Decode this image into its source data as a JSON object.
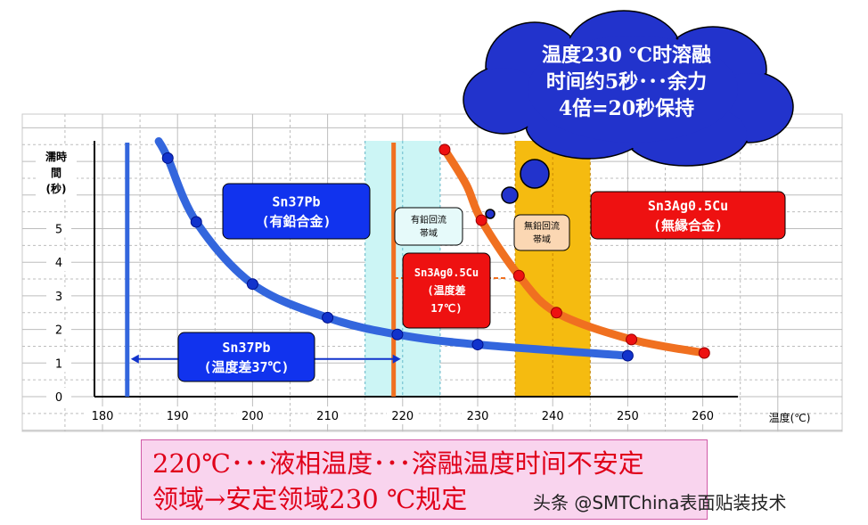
{
  "chart_data": {
    "type": "line",
    "xlabel": "温度(℃)",
    "ylabel_lines": [
      "濡時",
      "間",
      "(秒)"
    ],
    "x_ticks": [
      180,
      190,
      200,
      210,
      220,
      230,
      240,
      250,
      260
    ],
    "y_ticks": [
      0,
      1,
      2,
      3,
      4,
      5
    ],
    "xlim": [
      176,
      265
    ],
    "ylim": [
      0,
      7.2
    ],
    "grid": true,
    "series": [
      {
        "color": "#3366dd",
        "x": [
          187.5,
          188.7,
          192.5,
          200,
          210,
          219.3,
          230,
          250
        ],
        "y": [
          7.6,
          7.1,
          5.2,
          3.35,
          2.35,
          1.85,
          1.55,
          1.22
        ]
      },
      {
        "color": "#f07020",
        "x": [
          225.6,
          228.5,
          230.5,
          235.5,
          240.5,
          250.5,
          260.2
        ],
        "y": [
          7.35,
          6.3,
          5.25,
          3.6,
          2.5,
          1.7,
          1.3
        ]
      }
    ],
    "blue_markers": [
      {
        "x": 188.7,
        "y": 7.1
      },
      {
        "x": 192.5,
        "y": 5.2
      },
      {
        "x": 200,
        "y": 3.35
      },
      {
        "x": 210,
        "y": 2.35
      },
      {
        "x": 219.3,
        "y": 1.85
      },
      {
        "x": 230,
        "y": 1.55
      },
      {
        "x": 250,
        "y": 1.22
      }
    ],
    "orange_markers": [
      {
        "x": 225.6,
        "y": 7.35
      },
      {
        "x": 230.5,
        "y": 5.25
      },
      {
        "x": 235.5,
        "y": 3.6
      },
      {
        "x": 240.5,
        "y": 2.5
      },
      {
        "x": 250.5,
        "y": 1.7
      },
      {
        "x": 260.2,
        "y": 1.3
      }
    ],
    "vertical_lines": [
      {
        "x": 183.3,
        "color": "#3366dd"
      },
      {
        "x": 218.8,
        "color": "#f07020"
      }
    ],
    "bands": [
      {
        "x0": 215,
        "x1": 225,
        "color": "#ccf5f5",
        "label": [
          "有鉛回流",
          "帯域"
        ]
      },
      {
        "x0": 235,
        "x1": 245,
        "color": "#f5bb10",
        "label": [
          "無鉛回流",
          "帯域"
        ]
      }
    ],
    "arrow_span": {
      "x0": 183.3,
      "x1": 218.8,
      "y": 1.12
    },
    "labels": {
      "sn37pb": [
        "Sn37Pb",
        "(有鉛合金)"
      ],
      "sn37pb_diff": [
        "Sn37Pb",
        "(温度差37℃)"
      ],
      "sac": [
        "Sn3Ag0.5Cu",
        "(無縁合金)"
      ],
      "sac_diff": [
        "Sn3Ag0.5Cu",
        "(温度差",
        "17℃)"
      ]
    },
    "callout": [
      "温度230 ℃时溶融",
      "时间约5秒･･･余力",
      "4倍=20秒保持"
    ]
  },
  "colors": {
    "blue_box": "#1133ee",
    "red_box": "#ee1111",
    "cloud": "#2233cc"
  },
  "note": {
    "line1": "220℃･･･液相温度･･･溶融温度时间不安定",
    "line2": "领域→安定领域230 ℃规定"
  },
  "watermark": "头条 @SMTChina表面贴装技术"
}
